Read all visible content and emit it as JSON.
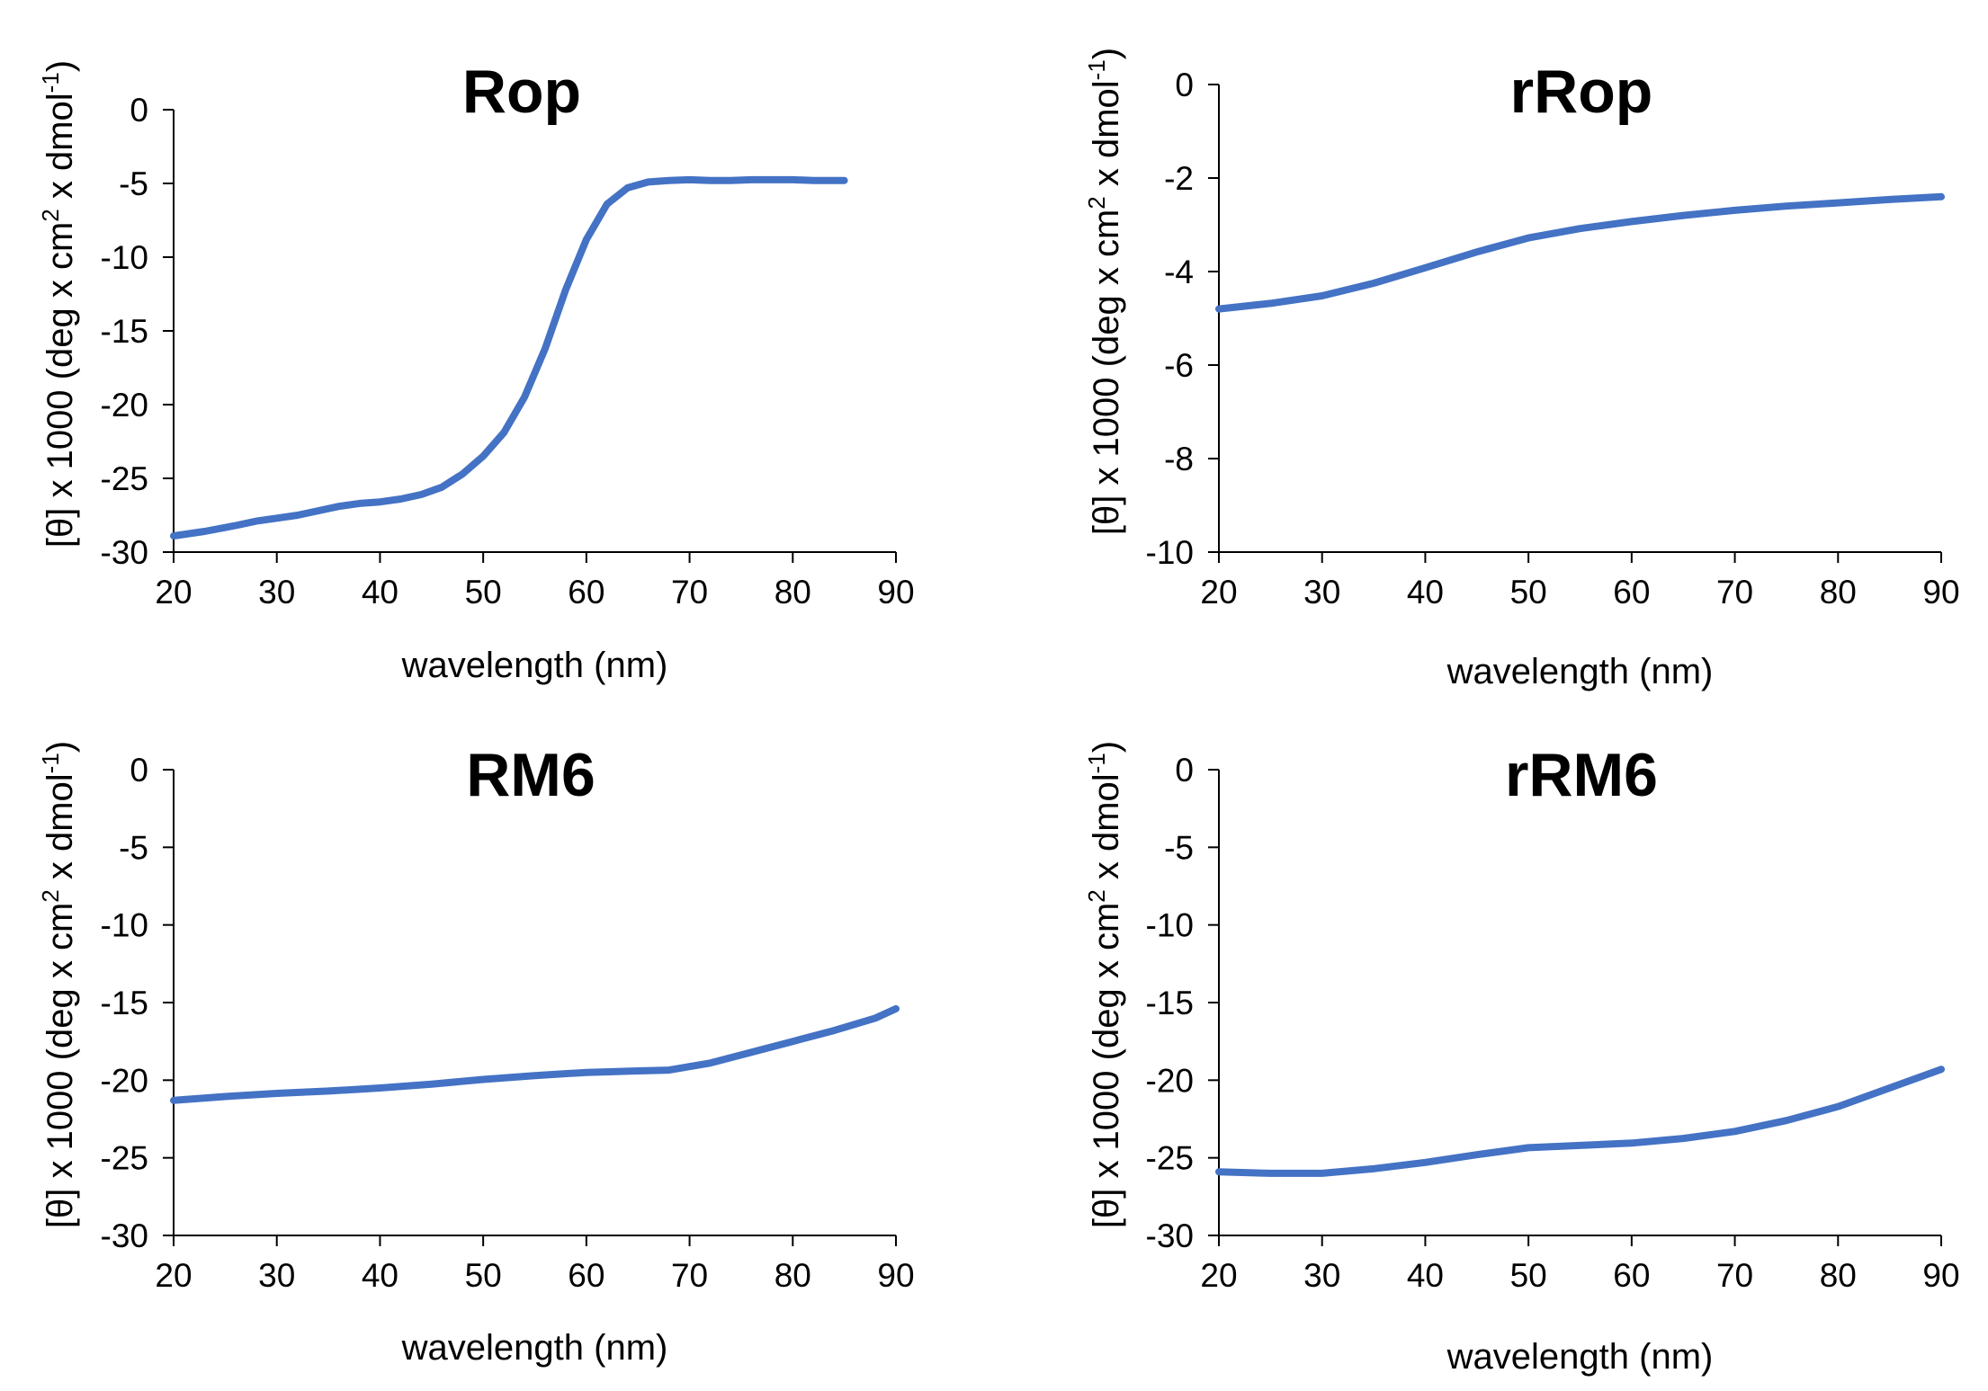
{
  "figure": {
    "ylabel_prefix": "[θ] x 1000 (deg x cm",
    "ylabel_sup1": "2",
    "ylabel_mid": " x dmol",
    "ylabel_sup2": "-1",
    "ylabel_suffix": ")"
  },
  "colors": {
    "series": "#4472C4"
  },
  "chart_data": [
    {
      "type": "line",
      "title": "Rop",
      "xlabel": "wavelength (nm)",
      "ylabel": "[θ] x 1000 (deg x cm2 x dmol-1)",
      "xlim": [
        20,
        90
      ],
      "ylim": [
        -30,
        0
      ],
      "xticks": [
        20,
        30,
        40,
        50,
        60,
        70,
        80,
        90
      ],
      "yticks": [
        0,
        -5,
        -10,
        -15,
        -20,
        -25,
        -30
      ],
      "series": [
        {
          "name": "Rop",
          "x": [
            20,
            23,
            26,
            28,
            30,
            32,
            34,
            36,
            38,
            40,
            42,
            44,
            46,
            48,
            50,
            52,
            54,
            56,
            58,
            60,
            62,
            64,
            66,
            68,
            70,
            72,
            74,
            76,
            78,
            80,
            82,
            84,
            85
          ],
          "y": [
            -28.9,
            -28.6,
            -28.2,
            -27.9,
            -27.7,
            -27.5,
            -27.2,
            -26.9,
            -26.7,
            -26.6,
            -26.4,
            -26.1,
            -25.6,
            -24.7,
            -23.5,
            -21.9,
            -19.5,
            -16.2,
            -12.2,
            -8.8,
            -6.4,
            -5.3,
            -4.9,
            -4.8,
            -4.75,
            -4.8,
            -4.8,
            -4.75,
            -4.75,
            -4.75,
            -4.8,
            -4.8,
            -4.8
          ]
        }
      ]
    },
    {
      "type": "line",
      "title": "rRop",
      "xlabel": "wavelength (nm)",
      "ylabel": "[θ] x 1000 (deg x cm2 x dmol-1)",
      "xlim": [
        20,
        90
      ],
      "ylim": [
        -10,
        0
      ],
      "xticks": [
        20,
        30,
        40,
        50,
        60,
        70,
        80,
        90
      ],
      "yticks": [
        0,
        -2,
        -4,
        -6,
        -8,
        -10
      ],
      "series": [
        {
          "name": "rRop",
          "x": [
            20,
            25,
            30,
            35,
            40,
            45,
            50,
            55,
            60,
            65,
            70,
            75,
            80,
            85,
            90
          ],
          "y": [
            -4.8,
            -4.68,
            -4.52,
            -4.25,
            -3.92,
            -3.58,
            -3.28,
            -3.08,
            -2.93,
            -2.8,
            -2.69,
            -2.6,
            -2.53,
            -2.46,
            -2.4
          ]
        }
      ]
    },
    {
      "type": "line",
      "title": "RM6",
      "xlabel": "wavelength (nm)",
      "ylabel": "[θ] x 1000 (deg x cm2 x dmol-1)",
      "xlim": [
        20,
        90
      ],
      "ylim": [
        -30,
        0
      ],
      "xticks": [
        20,
        30,
        40,
        50,
        60,
        70,
        80,
        90
      ],
      "yticks": [
        0,
        -5,
        -10,
        -15,
        -20,
        -25,
        -30
      ],
      "series": [
        {
          "name": "RM6",
          "x": [
            20,
            25,
            30,
            35,
            40,
            45,
            50,
            55,
            60,
            65,
            68,
            72,
            76,
            80,
            84,
            88,
            90
          ],
          "y": [
            -21.3,
            -21.05,
            -20.85,
            -20.7,
            -20.5,
            -20.25,
            -19.95,
            -19.7,
            -19.5,
            -19.4,
            -19.35,
            -18.9,
            -18.2,
            -17.5,
            -16.8,
            -16.0,
            -15.4
          ]
        }
      ]
    },
    {
      "type": "line",
      "title": "rRM6",
      "xlabel": "wavelength (nm)",
      "ylabel": "[θ] x 1000 (deg x cm2 x dmol-1)",
      "xlim": [
        20,
        90
      ],
      "ylim": [
        -30,
        0
      ],
      "xticks": [
        20,
        30,
        40,
        50,
        60,
        70,
        80,
        90
      ],
      "yticks": [
        0,
        -5,
        -10,
        -15,
        -20,
        -25,
        -30
      ],
      "series": [
        {
          "name": "rRM6",
          "x": [
            20,
            25,
            30,
            35,
            40,
            45,
            50,
            55,
            60,
            65,
            70,
            75,
            80,
            85,
            90
          ],
          "y": [
            -25.9,
            -26.0,
            -26.0,
            -25.7,
            -25.3,
            -24.8,
            -24.35,
            -24.2,
            -24.05,
            -23.75,
            -23.3,
            -22.6,
            -21.7,
            -20.5,
            -19.3
          ]
        }
      ]
    }
  ]
}
